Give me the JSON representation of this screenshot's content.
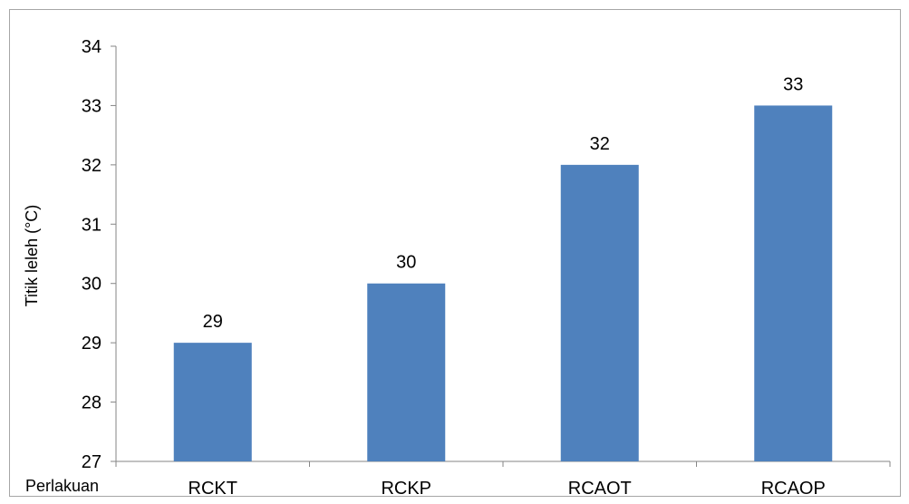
{
  "chart_data": {
    "type": "bar",
    "categories": [
      "RCKT",
      "RCKP",
      "RCAOT",
      "RCAOP"
    ],
    "values": [
      29,
      30,
      32,
      33
    ],
    "data_labels": [
      "29",
      "30",
      "32",
      "33"
    ],
    "title": "",
    "xlabel": "Perlakuan",
    "ylabel": "Titik leleh (°C)",
    "ylim": [
      27,
      34
    ],
    "yticks": [
      "27",
      "28",
      "29",
      "30",
      "31",
      "32",
      "33",
      "34"
    ],
    "grid": false,
    "legend": "none",
    "bar_color": "#4f81bd",
    "axis_color": "#868686"
  }
}
